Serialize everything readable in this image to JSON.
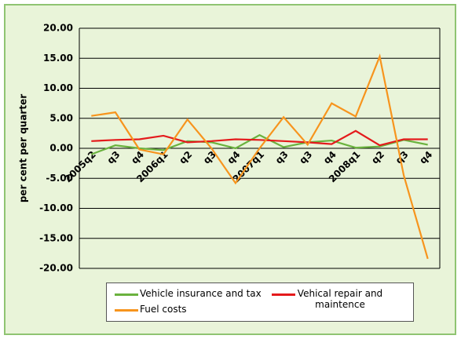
{
  "chart_data": {
    "type": "line",
    "y_label": "per cent per quarter",
    "categories": [
      "2005q2",
      "q3",
      "q4",
      "2006q1",
      "q2",
      "q3",
      "q4",
      "2007q1",
      "q3",
      "q3",
      "q4",
      "2008q1",
      "q2",
      "q3",
      "q4"
    ],
    "series": [
      {
        "name": "Vehicle insurance and tax",
        "color": "#6ab23e",
        "values": [
          -1.0,
          0.5,
          0.0,
          -0.3,
          1.2,
          1.0,
          0.0,
          2.2,
          0.2,
          1.0,
          1.3,
          0.1,
          0.3,
          1.4,
          0.6
        ]
      },
      {
        "name": "Vehical repair and maintence",
        "color": "#e41a1c",
        "values": [
          1.2,
          1.4,
          1.5,
          2.1,
          1.0,
          1.2,
          1.5,
          1.4,
          1.2,
          1.0,
          0.7,
          2.9,
          0.5,
          1.5,
          1.5
        ]
      },
      {
        "name": "Fuel costs",
        "color": "#f7941d",
        "values": [
          5.4,
          6.0,
          -0.2,
          -1.0,
          4.8,
          0.0,
          -5.8,
          0.0,
          5.2,
          0.6,
          7.5,
          5.3,
          15.3,
          -4.5,
          -18.4
        ]
      }
    ],
    "ylim": [
      -20,
      20
    ],
    "yticks": [
      {
        "value": -20,
        "label": "-20.00"
      },
      {
        "value": -15,
        "label": "-15.00"
      },
      {
        "value": -10,
        "label": "-10.00"
      },
      {
        "value": -5,
        "label": "-5.00"
      },
      {
        "value": 0,
        "label": "0.00"
      },
      {
        "value": 5,
        "label": "5.00"
      },
      {
        "value": 10,
        "label": "10.00"
      },
      {
        "value": 15,
        "label": "15.00"
      },
      {
        "value": 20,
        "label": "20.00"
      }
    ],
    "grid": true
  }
}
